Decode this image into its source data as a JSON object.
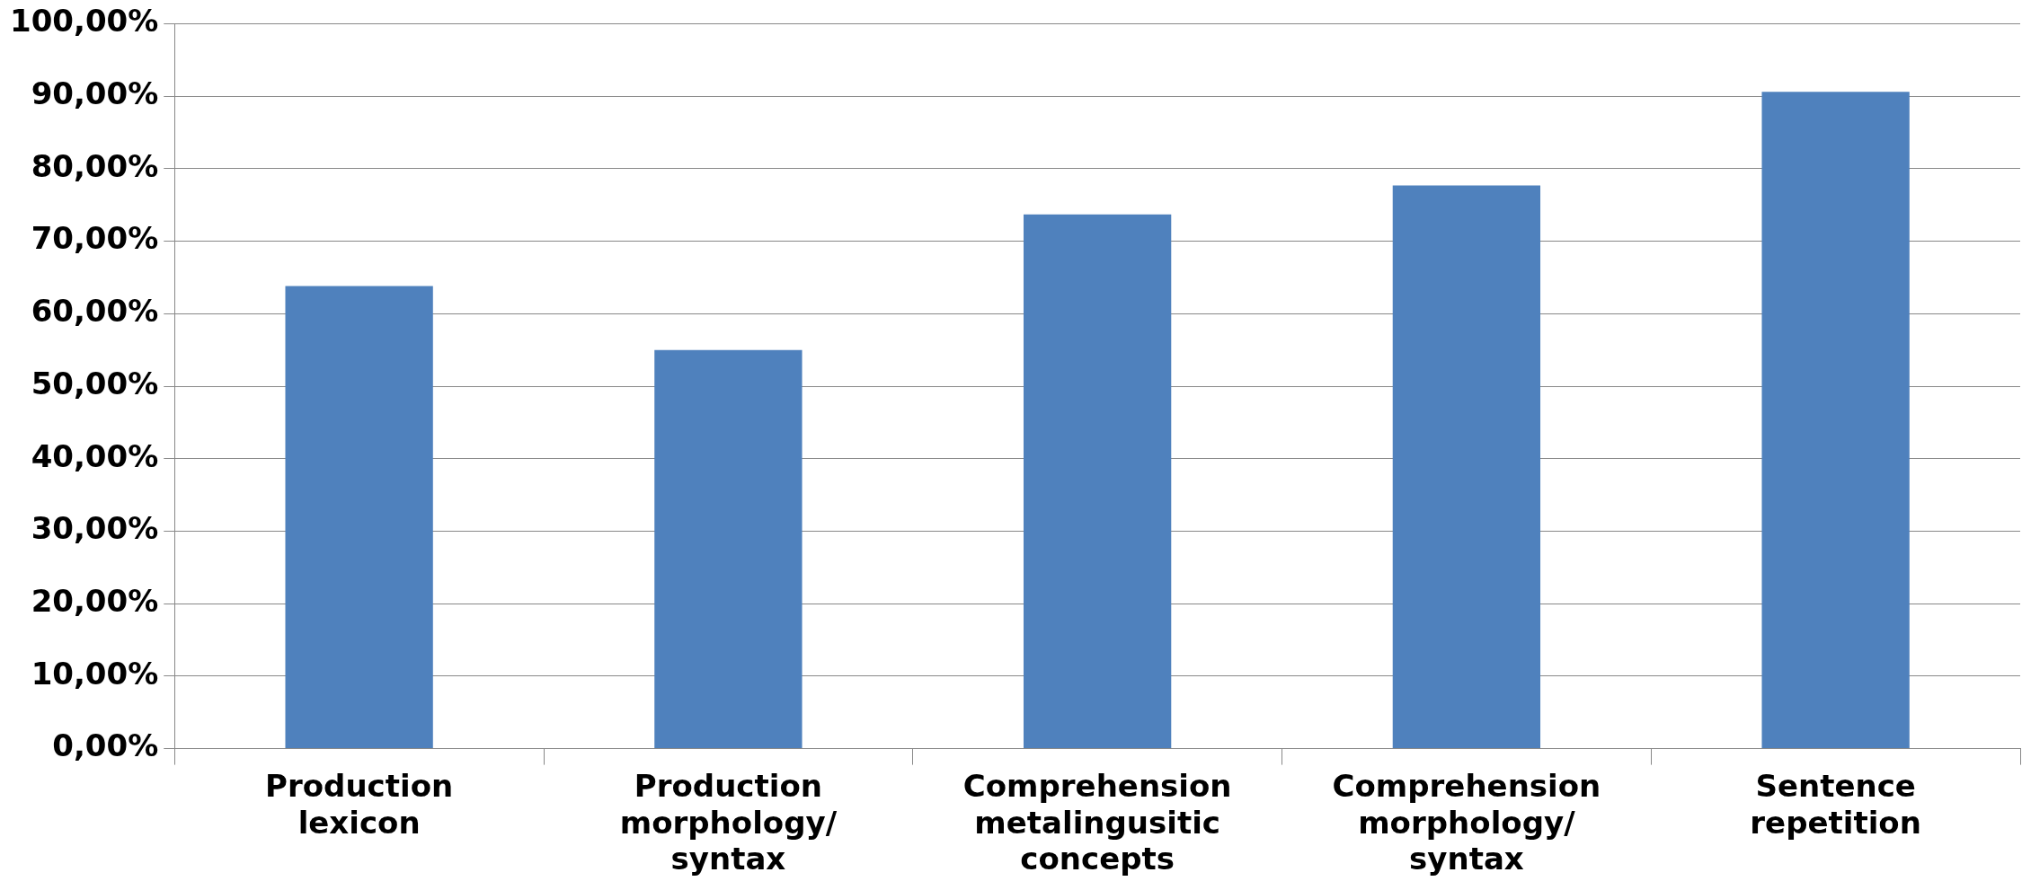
{
  "chart_data": {
    "type": "bar",
    "categories": [
      "Production\nlexicon",
      "Production\nmorphology/\nsyntax",
      "Comprehension\nmetalingusitic\nconcepts",
      "Comprehension\nmorphology/\nsyntax",
      "Sentence\nrepetition"
    ],
    "values": [
      63.8,
      55,
      73.7,
      77.7,
      90.6
    ],
    "color": "#4f81bd",
    "ylim": [
      0,
      100
    ],
    "yticks": [
      {
        "value": 0,
        "label": "0,00%"
      },
      {
        "value": 10,
        "label": "10,00%"
      },
      {
        "value": 20,
        "label": "20,00%"
      },
      {
        "value": 30,
        "label": "30,00%"
      },
      {
        "value": 40,
        "label": "40,00%"
      },
      {
        "value": 50,
        "label": "50,00%"
      },
      {
        "value": 60,
        "label": "60,00%"
      },
      {
        "value": 70,
        "label": "70,00%"
      },
      {
        "value": 80,
        "label": "80,00%"
      },
      {
        "value": 90,
        "label": "90,00%"
      },
      {
        "value": 100,
        "label": "100,00%"
      }
    ],
    "grid": "y",
    "legend": false
  }
}
